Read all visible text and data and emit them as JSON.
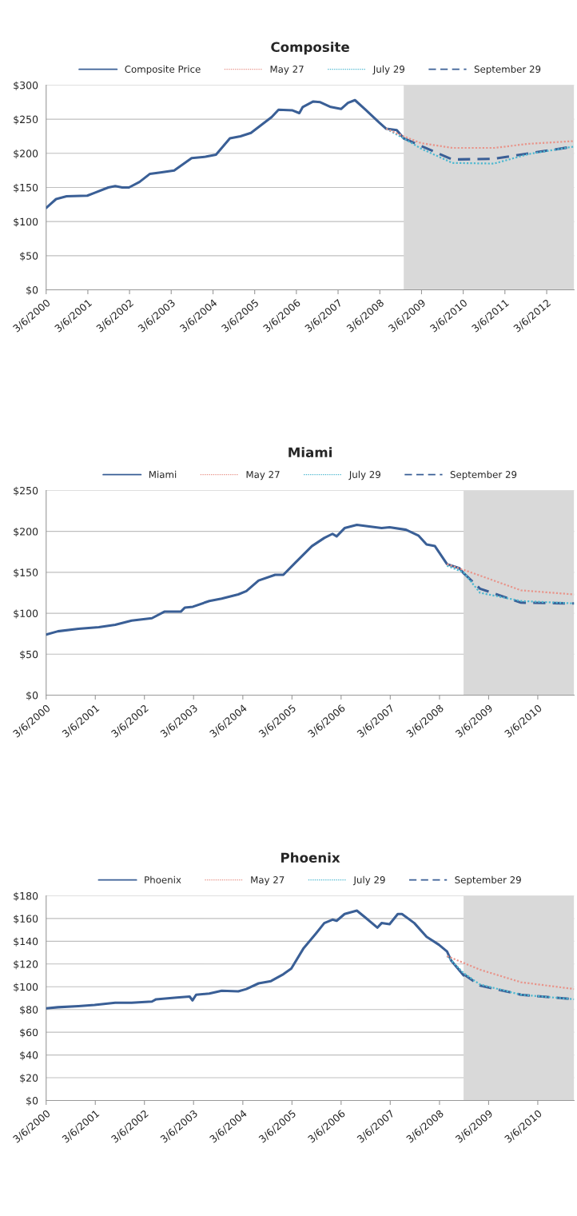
{
  "chart_data": [
    {
      "type": "line",
      "title": "Composite",
      "grid": "y",
      "legend": "top",
      "xlim": [
        "2000-03-06",
        "2012-11"
      ],
      "ylim": [
        0,
        300
      ],
      "xticks": [
        {
          "value": "2000-03-06",
          "label": "3/6/2000"
        },
        {
          "value": "2001-03-06",
          "label": "3/6/2001"
        },
        {
          "value": "2002-03-06",
          "label": "3/6/2002"
        },
        {
          "value": "2003-03-06",
          "label": "3/6/2003"
        },
        {
          "value": "2004-03-06",
          "label": "3/6/2004"
        },
        {
          "value": "2005-03-06",
          "label": "3/6/2005"
        },
        {
          "value": "2006-03-06",
          "label": "3/6/2006"
        },
        {
          "value": "2007-03-06",
          "label": "3/6/2007"
        },
        {
          "value": "2008-03-06",
          "label": "3/6/2008"
        },
        {
          "value": "2009-03-06",
          "label": "3/6/2009"
        },
        {
          "value": "2010-03-06",
          "label": "3/6/2010"
        },
        {
          "value": "2011-03-06",
          "label": "3/6/2011"
        },
        {
          "value": "2012-03-06",
          "label": "3/6/2012"
        }
      ],
      "yticks": [
        {
          "value": 0,
          "label": "$0"
        },
        {
          "value": 50,
          "label": "$50"
        },
        {
          "value": 100,
          "label": "$100"
        },
        {
          "value": 150,
          "label": "$150"
        },
        {
          "value": 200,
          "label": "$200"
        },
        {
          "value": 250,
          "label": "$250"
        },
        {
          "value": 300,
          "label": "$300"
        }
      ],
      "bands": [
        {
          "axis": "x",
          "from": "2008-10",
          "to": "2012-11",
          "color": "#d9d9d9"
        }
      ],
      "series": [
        {
          "name": "Composite Price",
          "color": "#3a5f96",
          "line_style": "solid",
          "x": [
            "2000-03-06",
            "2000-06",
            "2000-09",
            "2001-03",
            "2001-05",
            "2001-09",
            "2001-11",
            "2002-01",
            "2002-03",
            "2002-06",
            "2002-09",
            "2002-12",
            "2003-04",
            "2003-09",
            "2004-01",
            "2004-04",
            "2004-08",
            "2004-11",
            "2005-02",
            "2005-08",
            "2005-10",
            "2006-02",
            "2006-04",
            "2006-05",
            "2006-08",
            "2006-10",
            "2007-01",
            "2007-04",
            "2007-06",
            "2007-08",
            "2007-11",
            "2008-03",
            "2008-05",
            "2008-08",
            "2008-10"
          ],
          "values": [
            120,
            133,
            137,
            138,
            142,
            150,
            152,
            150,
            150,
            158,
            170,
            172,
            175,
            193,
            195,
            198,
            222,
            225,
            230,
            253,
            264,
            263,
            259,
            268,
            276,
            275,
            268,
            265,
            274,
            278,
            264,
            245,
            236,
            234,
            222
          ]
        },
        {
          "name": "May 27",
          "color": "#e8948a",
          "line_style": "dotted",
          "x": [
            "2008-05",
            "2008-10",
            "2009-03",
            "2009-12",
            "2010-12",
            "2011-10",
            "2012-11"
          ],
          "values": [
            236,
            225,
            215,
            208,
            208,
            214,
            218
          ]
        },
        {
          "name": "July 29",
          "color": "#4db8d0",
          "line_style": "dotted",
          "x": [
            "2008-05",
            "2008-10",
            "2009-03",
            "2009-12",
            "2010-12",
            "2011-10",
            "2012-11"
          ],
          "values": [
            236,
            222,
            207,
            186,
            185,
            199,
            210
          ]
        },
        {
          "name": "September 29",
          "color": "#3a5f96",
          "line_style": "dashed",
          "x": [
            "2008-10",
            "2009-03",
            "2009-12",
            "2010-12",
            "2011-10",
            "2012-11"
          ],
          "values": [
            222,
            211,
            191,
            192,
            200,
            210
          ]
        }
      ]
    },
    {
      "type": "line",
      "title": "Miami",
      "grid": "y",
      "legend": "top",
      "xlim": [
        "2000-03-06",
        "2010-12"
      ],
      "ylim": [
        0,
        250
      ],
      "xticks": [
        {
          "value": "2000-03-06",
          "label": "3/6/2000"
        },
        {
          "value": "2001-03-06",
          "label": "3/6/2001"
        },
        {
          "value": "2002-03-06",
          "label": "3/6/2002"
        },
        {
          "value": "2003-03-06",
          "label": "3/6/2003"
        },
        {
          "value": "2004-03-06",
          "label": "3/6/2004"
        },
        {
          "value": "2005-03-06",
          "label": "3/6/2005"
        },
        {
          "value": "2006-03-06",
          "label": "3/6/2006"
        },
        {
          "value": "2007-03-06",
          "label": "3/6/2007"
        },
        {
          "value": "2008-03-06",
          "label": "3/6/2008"
        },
        {
          "value": "2009-03-06",
          "label": "3/6/2009"
        },
        {
          "value": "2010-03-06",
          "label": "3/6/2010"
        }
      ],
      "yticks": [
        {
          "value": 0,
          "label": "$0"
        },
        {
          "value": 50,
          "label": "$50"
        },
        {
          "value": 100,
          "label": "$100"
        },
        {
          "value": 150,
          "label": "$150"
        },
        {
          "value": 200,
          "label": "$200"
        },
        {
          "value": 250,
          "label": "$250"
        }
      ],
      "bands": [
        {
          "axis": "x",
          "from": "2008-09",
          "to": "2010-12",
          "color": "#d9d9d9"
        }
      ],
      "series": [
        {
          "name": "Miami",
          "color": "#3a5f96",
          "line_style": "solid",
          "x": [
            "2000-03-06",
            "2000-06",
            "2000-11",
            "2001-04",
            "2001-08",
            "2001-12",
            "2002-05",
            "2002-08",
            "2002-12",
            "2003-01",
            "2003-03",
            "2003-07",
            "2003-10",
            "2004-02",
            "2004-04",
            "2004-07",
            "2004-11",
            "2005-01",
            "2005-04",
            "2005-08",
            "2005-11",
            "2006-01",
            "2006-02",
            "2006-04",
            "2006-07",
            "2006-10",
            "2007-01",
            "2007-03",
            "2007-07",
            "2007-10",
            "2007-12",
            "2008-02",
            "2008-03",
            "2008-05",
            "2008-08",
            "2008-09"
          ],
          "values": [
            74,
            78,
            81,
            83,
            86,
            91,
            94,
            102,
            102,
            107,
            108,
            115,
            118,
            123,
            127,
            140,
            147,
            147,
            162,
            182,
            192,
            197,
            194,
            204,
            208,
            206,
            204,
            205,
            202,
            195,
            184,
            182,
            175,
            160,
            155,
            149
          ]
        },
        {
          "name": "May 27",
          "color": "#e8948a",
          "line_style": "dotted",
          "x": [
            "2008-05",
            "2008-09",
            "2009-01",
            "2009-11",
            "2010-12"
          ],
          "values": [
            160,
            153,
            146,
            128,
            123
          ]
        },
        {
          "name": "July 29",
          "color": "#4db8d0",
          "line_style": "dotted",
          "x": [
            "2008-05",
            "2008-09",
            "2009-01",
            "2009-11",
            "2010-12"
          ],
          "values": [
            158,
            150,
            125,
            115,
            112
          ]
        },
        {
          "name": "September 29",
          "color": "#3a5f96",
          "line_style": "dashed",
          "x": [
            "2008-09",
            "2009-01",
            "2009-11",
            "2010-12"
          ],
          "values": [
            149,
            130,
            113,
            112
          ]
        }
      ]
    },
    {
      "type": "line",
      "title": "Phoenix",
      "grid": "y",
      "legend": "top",
      "xlim": [
        "2000-03-06",
        "2010-12"
      ],
      "ylim": [
        0,
        180
      ],
      "xticks": [
        {
          "value": "2000-03-06",
          "label": "3/6/2000"
        },
        {
          "value": "2001-03-06",
          "label": "3/6/2001"
        },
        {
          "value": "2002-03-06",
          "label": "3/6/2002"
        },
        {
          "value": "2003-03-06",
          "label": "3/6/2003"
        },
        {
          "value": "2004-03-06",
          "label": "3/6/2004"
        },
        {
          "value": "2005-03-06",
          "label": "3/6/2005"
        },
        {
          "value": "2006-03-06",
          "label": "3/6/2006"
        },
        {
          "value": "2007-03-06",
          "label": "3/6/2007"
        },
        {
          "value": "2008-03-06",
          "label": "3/6/2008"
        },
        {
          "value": "2009-03-06",
          "label": "3/6/2009"
        },
        {
          "value": "2010-03-06",
          "label": "3/6/2010"
        }
      ],
      "yticks": [
        {
          "value": 0,
          "label": "$0"
        },
        {
          "value": 20,
          "label": "$20"
        },
        {
          "value": 40,
          "label": "$40"
        },
        {
          "value": 60,
          "label": "$60"
        },
        {
          "value": 80,
          "label": "$80"
        },
        {
          "value": 100,
          "label": "$100"
        },
        {
          "value": 120,
          "label": "$120"
        },
        {
          "value": 140,
          "label": "$140"
        },
        {
          "value": 160,
          "label": "$160"
        },
        {
          "value": 180,
          "label": "$180"
        }
      ],
      "bands": [
        {
          "axis": "x",
          "from": "2008-09",
          "to": "2010-12",
          "color": "#d9d9d9"
        }
      ],
      "series": [
        {
          "name": "Phoenix",
          "color": "#3a5f96",
          "line_style": "solid",
          "x": [
            "2000-03-06",
            "2000-06",
            "2000-11",
            "2001-03",
            "2001-08",
            "2001-12",
            "2002-05",
            "2002-06",
            "2002-11",
            "2003-02-05",
            "2003-02-26",
            "2003-03-25",
            "2003-07",
            "2003-10",
            "2004-02",
            "2004-04",
            "2004-07",
            "2004-10",
            "2005-01",
            "2005-03",
            "2005-06",
            "2005-09",
            "2005-11",
            "2006-01",
            "2006-02",
            "2006-04",
            "2006-07",
            "2006-09",
            "2006-12",
            "2007-01",
            "2007-03",
            "2007-05",
            "2007-06",
            "2007-09",
            "2007-12",
            "2008-03",
            "2008-05",
            "2008-06",
            "2008-09"
          ],
          "values": [
            81,
            82,
            83,
            84,
            86,
            86,
            87,
            89,
            90.5,
            91.4,
            88,
            93,
            94,
            96.5,
            96,
            98,
            103,
            105,
            111,
            116,
            134,
            147,
            156,
            159,
            158,
            164,
            167,
            161,
            152,
            156,
            155,
            164,
            164,
            156,
            144,
            137,
            131,
            123,
            110
          ]
        },
        {
          "name": "May 27",
          "color": "#e8948a",
          "line_style": "dotted",
          "x": [
            "2008-05",
            "2008-09",
            "2009-01",
            "2009-11",
            "2010-12"
          ],
          "values": [
            127,
            121,
            115,
            104,
            98
          ]
        },
        {
          "name": "July 29",
          "color": "#4db8d0",
          "line_style": "dotted",
          "x": [
            "2008-05",
            "2008-09",
            "2009-01",
            "2009-11",
            "2010-12"
          ],
          "values": [
            127,
            112,
            102,
            93,
            89
          ]
        },
        {
          "name": "September 29",
          "color": "#3a5f96",
          "line_style": "dashed",
          "x": [
            "2008-09",
            "2009-01",
            "2009-11",
            "2010-12"
          ],
          "values": [
            111,
            101,
            93,
            89
          ]
        }
      ]
    }
  ]
}
